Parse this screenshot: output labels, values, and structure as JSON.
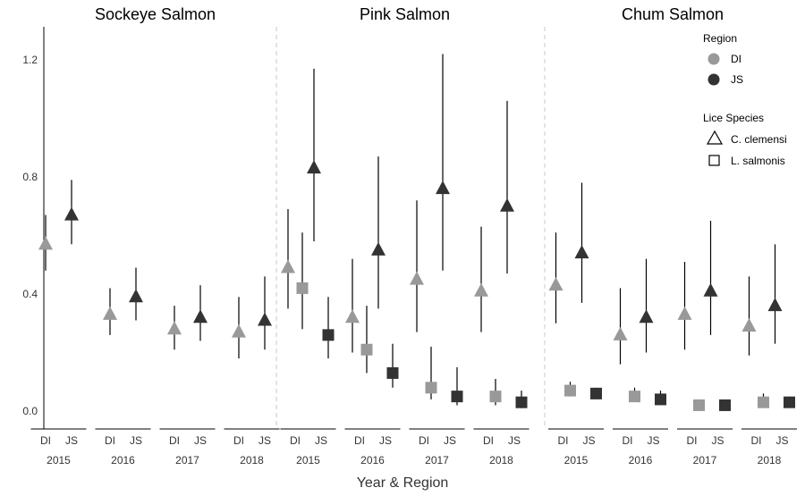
{
  "chart_data": {
    "type": "scatter",
    "xlabel": "Year & Region",
    "ylabel": "",
    "ylim": [
      -0.06,
      1.32
    ],
    "y_ticks": [
      0.0,
      0.4,
      0.8,
      1.2
    ],
    "y_tick_labels": [
      "0.0",
      "0.4",
      "0.8",
      "1.2"
    ],
    "grid": false,
    "years": [
      "2015",
      "2016",
      "2017",
      "2018"
    ],
    "regions": [
      "DI",
      "JS"
    ],
    "region_colors": {
      "DI": "#999999",
      "JS": "#333333"
    },
    "legend": {
      "placement": "top-right",
      "region_title": "Region",
      "region_entries": [
        "DI",
        "JS"
      ],
      "species_title": "Lice Species",
      "species_entries": [
        "C. clemensi",
        "L. salmonis"
      ]
    },
    "panels": [
      {
        "title": "Sockeye Salmon",
        "series": [
          {
            "species": "C. clemensi",
            "region": "DI",
            "year": "2015",
            "y": 0.57,
            "lo": 0.48,
            "hi": 0.67
          },
          {
            "species": "C. clemensi",
            "region": "JS",
            "year": "2015",
            "y": 0.67,
            "lo": 0.57,
            "hi": 0.79
          },
          {
            "species": "C. clemensi",
            "region": "DI",
            "year": "2016",
            "y": 0.33,
            "lo": 0.26,
            "hi": 0.42
          },
          {
            "species": "C. clemensi",
            "region": "JS",
            "year": "2016",
            "y": 0.39,
            "lo": 0.31,
            "hi": 0.49
          },
          {
            "species": "C. clemensi",
            "region": "DI",
            "year": "2017",
            "y": 0.28,
            "lo": 0.21,
            "hi": 0.36
          },
          {
            "species": "C. clemensi",
            "region": "JS",
            "year": "2017",
            "y": 0.32,
            "lo": 0.24,
            "hi": 0.43
          },
          {
            "species": "C. clemensi",
            "region": "DI",
            "year": "2018",
            "y": 0.27,
            "lo": 0.18,
            "hi": 0.39
          },
          {
            "species": "C. clemensi",
            "region": "JS",
            "year": "2018",
            "y": 0.31,
            "lo": 0.21,
            "hi": 0.46
          }
        ]
      },
      {
        "title": "Pink Salmon",
        "series": [
          {
            "species": "C. clemensi",
            "region": "DI",
            "year": "2015",
            "y": 0.49,
            "lo": 0.35,
            "hi": 0.69
          },
          {
            "species": "L. salmonis",
            "region": "DI",
            "year": "2015",
            "y": 0.42,
            "lo": 0.28,
            "hi": 0.61
          },
          {
            "species": "C. clemensi",
            "region": "JS",
            "year": "2015",
            "y": 0.83,
            "lo": 0.58,
            "hi": 1.17
          },
          {
            "species": "L. salmonis",
            "region": "JS",
            "year": "2015",
            "y": 0.26,
            "lo": 0.18,
            "hi": 0.39
          },
          {
            "species": "C. clemensi",
            "region": "DI",
            "year": "2016",
            "y": 0.32,
            "lo": 0.2,
            "hi": 0.52
          },
          {
            "species": "L. salmonis",
            "region": "DI",
            "year": "2016",
            "y": 0.21,
            "lo": 0.13,
            "hi": 0.36
          },
          {
            "species": "C. clemensi",
            "region": "JS",
            "year": "2016",
            "y": 0.55,
            "lo": 0.35,
            "hi": 0.87
          },
          {
            "species": "L. salmonis",
            "region": "JS",
            "year": "2016",
            "y": 0.13,
            "lo": 0.08,
            "hi": 0.23
          },
          {
            "species": "C. clemensi",
            "region": "DI",
            "year": "2017",
            "y": 0.45,
            "lo": 0.27,
            "hi": 0.72
          },
          {
            "species": "L. salmonis",
            "region": "DI",
            "year": "2017",
            "y": 0.08,
            "lo": 0.04,
            "hi": 0.22
          },
          {
            "species": "C. clemensi",
            "region": "JS",
            "year": "2017",
            "y": 0.76,
            "lo": 0.48,
            "hi": 1.22
          },
          {
            "species": "L. salmonis",
            "region": "JS",
            "year": "2017",
            "y": 0.05,
            "lo": 0.02,
            "hi": 0.15
          },
          {
            "species": "C. clemensi",
            "region": "DI",
            "year": "2018",
            "y": 0.41,
            "lo": 0.27,
            "hi": 0.63
          },
          {
            "species": "L. salmonis",
            "region": "DI",
            "year": "2018",
            "y": 0.05,
            "lo": 0.02,
            "hi": 0.11
          },
          {
            "species": "C. clemensi",
            "region": "JS",
            "year": "2018",
            "y": 0.7,
            "lo": 0.47,
            "hi": 1.06
          },
          {
            "species": "L. salmonis",
            "region": "JS",
            "year": "2018",
            "y": 0.03,
            "lo": 0.01,
            "hi": 0.07
          }
        ]
      },
      {
        "title": "Chum Salmon",
        "series": [
          {
            "species": "C. clemensi",
            "region": "DI",
            "year": "2015",
            "y": 0.43,
            "lo": 0.3,
            "hi": 0.61
          },
          {
            "species": "L. salmonis",
            "region": "DI",
            "year": "2015",
            "y": 0.07,
            "lo": 0.05,
            "hi": 0.1
          },
          {
            "species": "C. clemensi",
            "region": "JS",
            "year": "2015",
            "y": 0.54,
            "lo": 0.37,
            "hi": 0.78
          },
          {
            "species": "L. salmonis",
            "region": "JS",
            "year": "2015",
            "y": 0.06,
            "lo": 0.05,
            "hi": 0.08
          },
          {
            "species": "C. clemensi",
            "region": "DI",
            "year": "2016",
            "y": 0.26,
            "lo": 0.16,
            "hi": 0.42
          },
          {
            "species": "L. salmonis",
            "region": "DI",
            "year": "2016",
            "y": 0.05,
            "lo": 0.04,
            "hi": 0.08
          },
          {
            "species": "C. clemensi",
            "region": "JS",
            "year": "2016",
            "y": 0.32,
            "lo": 0.2,
            "hi": 0.52
          },
          {
            "species": "L. salmonis",
            "region": "JS",
            "year": "2016",
            "y": 0.04,
            "lo": 0.03,
            "hi": 0.07
          },
          {
            "species": "C. clemensi",
            "region": "DI",
            "year": "2017",
            "y": 0.33,
            "lo": 0.21,
            "hi": 0.51
          },
          {
            "species": "L. salmonis",
            "region": "DI",
            "year": "2017",
            "y": 0.02,
            "lo": 0.01,
            "hi": 0.04
          },
          {
            "species": "C. clemensi",
            "region": "JS",
            "year": "2017",
            "y": 0.41,
            "lo": 0.26,
            "hi": 0.65
          },
          {
            "species": "L. salmonis",
            "region": "JS",
            "year": "2017",
            "y": 0.02,
            "lo": 0.01,
            "hi": 0.03
          },
          {
            "species": "C. clemensi",
            "region": "DI",
            "year": "2018",
            "y": 0.29,
            "lo": 0.19,
            "hi": 0.46
          },
          {
            "species": "L. salmonis",
            "region": "DI",
            "year": "2018",
            "y": 0.03,
            "lo": 0.02,
            "hi": 0.06
          },
          {
            "species": "C. clemensi",
            "region": "JS",
            "year": "2018",
            "y": 0.36,
            "lo": 0.23,
            "hi": 0.57
          },
          {
            "species": "L. salmonis",
            "region": "JS",
            "year": "2018",
            "y": 0.03,
            "lo": 0.02,
            "hi": 0.05
          }
        ]
      }
    ]
  }
}
